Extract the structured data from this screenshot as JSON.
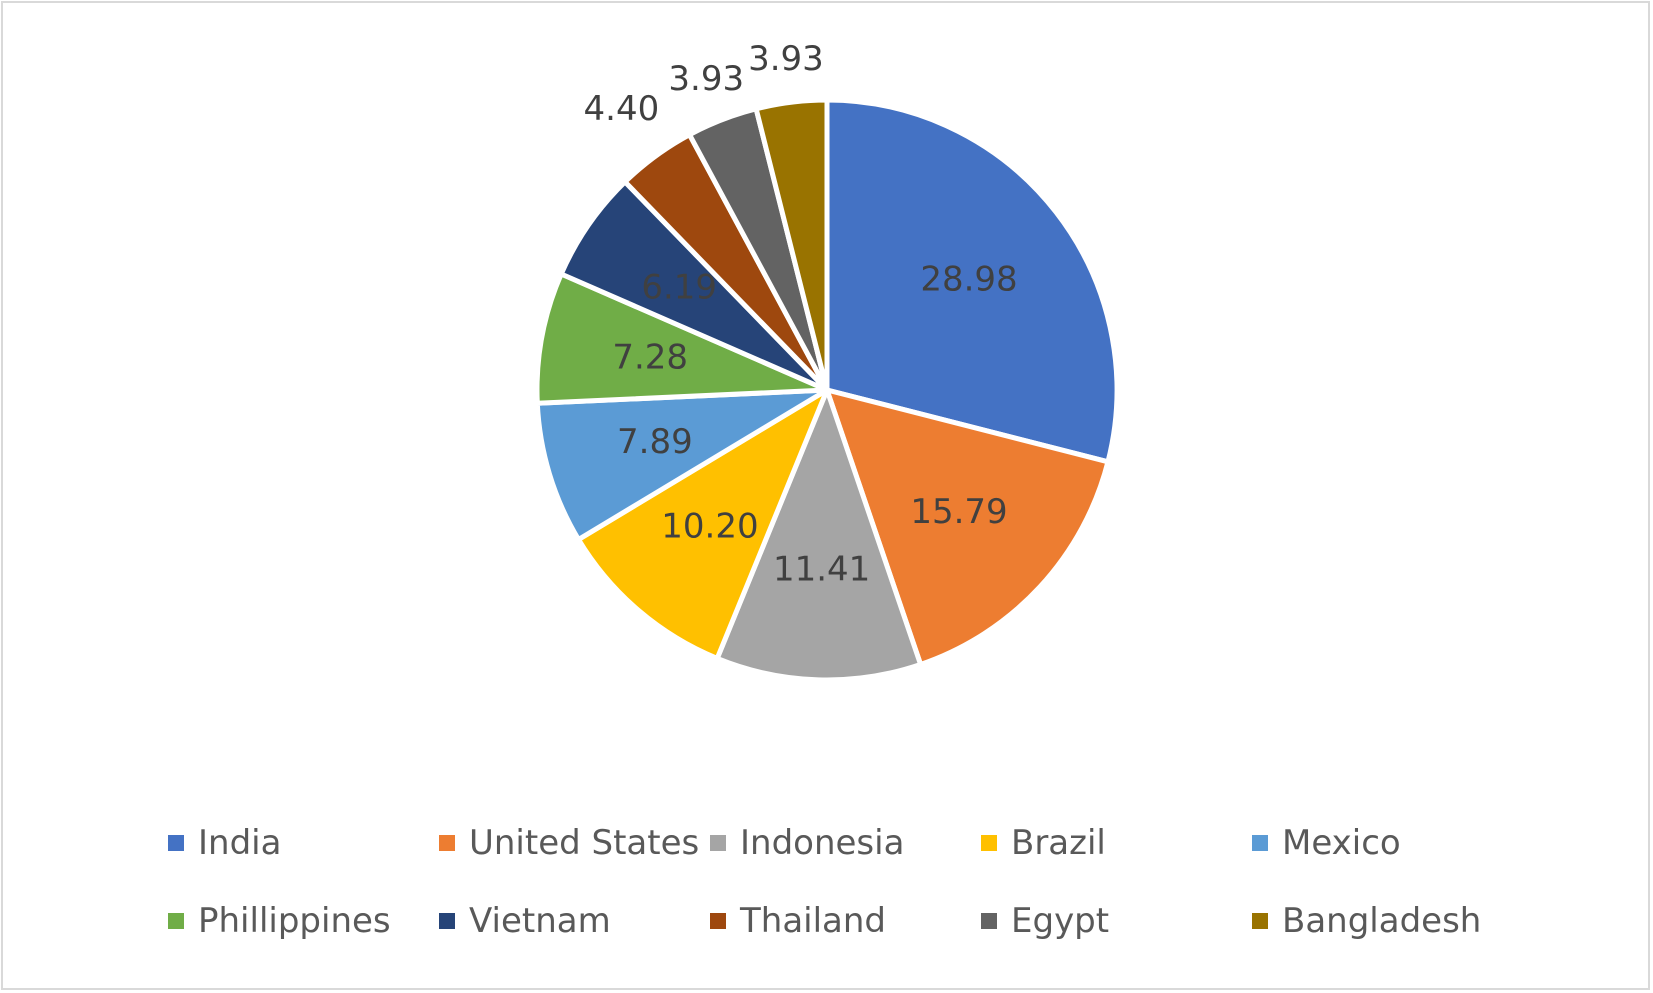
{
  "chart_data": {
    "type": "pie",
    "title": "",
    "categories": [
      "India",
      "United States",
      "Indonesia",
      "Brazil",
      "Mexico",
      "Phillippines",
      "Vietnam",
      "Thailand",
      "Egypt",
      "Bangladesh"
    ],
    "values": [
      28.98,
      15.79,
      11.41,
      10.2,
      7.89,
      7.28,
      6.19,
      4.4,
      3.93,
      3.93
    ],
    "value_labels": [
      "28.98",
      "15.79",
      "11.41",
      "10.20",
      "7.89",
      "7.28",
      "6.19",
      "4.40",
      "3.93",
      "3.93"
    ],
    "colors": [
      "#4472C4",
      "#ED7D31",
      "#A5A5A5",
      "#FFC000",
      "#5B9BD5",
      "#70AD47",
      "#264478",
      "#9E480E",
      "#636363",
      "#997300"
    ],
    "legend_position": "bottom",
    "start_angle": "12-o'clock",
    "direction": "clockwise"
  }
}
